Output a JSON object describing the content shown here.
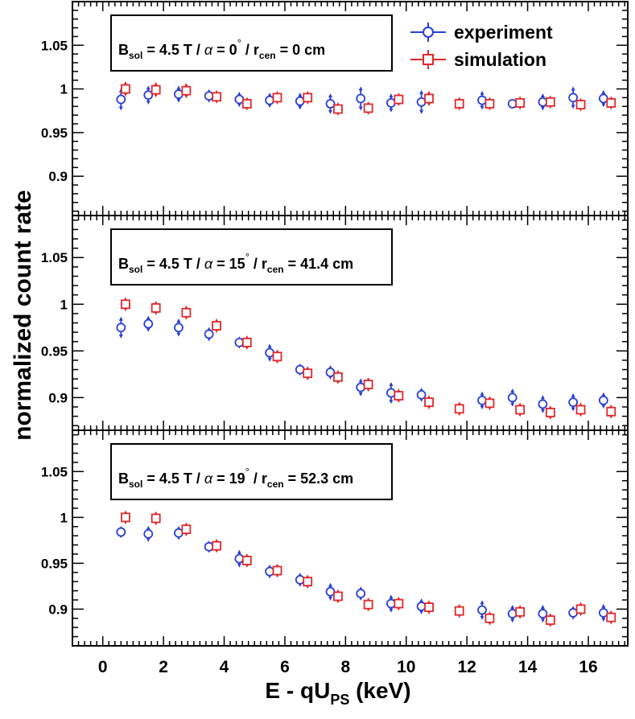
{
  "chart_data": {
    "type": "scatter",
    "ylabel": "normalized count rate",
    "xlabel": {
      "main": "E - qU",
      "sub": "PS",
      "unit": " (keV)"
    },
    "xlim": [
      -1,
      17.3
    ],
    "x_ticks": [
      0,
      2,
      4,
      6,
      8,
      10,
      12,
      14,
      16
    ],
    "x_tick_labels": [
      "0",
      "2",
      "4",
      "6",
      "8",
      "10",
      "12",
      "14",
      "16"
    ],
    "legend": {
      "position": "top-right",
      "entries": [
        {
          "name": "experiment",
          "color": "#2a3fd6",
          "marker": "circle"
        },
        {
          "name": "simulation",
          "color": "#e0282c",
          "marker": "square"
        }
      ]
    },
    "panels": [
      {
        "ylim": [
          0.855,
          1.1
        ],
        "y_ticks": [
          0.9,
          0.95,
          1,
          1.05
        ],
        "y_tick_labels": [
          "0.9",
          "0.95",
          "1",
          "1.05"
        ],
        "label": {
          "b": "B",
          "bsub": "sol",
          "mid": " = 4.5 T / ",
          "alpha": "α",
          "eq": " = 0",
          "deg": "°",
          "sep": " / r",
          "rsub": "cen",
          "tail": " = 0 cm"
        },
        "series": [
          {
            "name": "experiment",
            "x": [
              0.6,
              1.5,
              2.5,
              3.5,
              4.5,
              5.5,
              6.5,
              7.5,
              8.5,
              9.5,
              10.5,
              12.5,
              13.5,
              14.5,
              15.5,
              16.5
            ],
            "y": [
              0.988,
              0.993,
              0.994,
              0.992,
              0.988,
              0.987,
              0.986,
              0.983,
              0.989,
              0.984,
              0.985,
              0.987,
              0.983,
              0.985,
              0.99,
              0.989
            ],
            "err": [
              0.011,
              0.009,
              0.008,
              0.006,
              0.007,
              0.007,
              0.008,
              0.01,
              0.012,
              0.009,
              0.012,
              0.009,
              0.003,
              0.008,
              0.011,
              0.008
            ]
          },
          {
            "name": "simulation",
            "x": [
              0.75,
              1.75,
              2.75,
              3.75,
              4.75,
              5.75,
              6.75,
              7.75,
              8.75,
              9.75,
              10.75,
              11.75,
              12.75,
              13.75,
              14.75,
              15.75,
              16.75
            ],
            "y": [
              1.0,
              0.999,
              0.998,
              0.991,
              0.983,
              0.99,
              0.99,
              0.977,
              0.978,
              0.988,
              0.989,
              0.983,
              0.983,
              0.984,
              0.985,
              0.982,
              0.984
            ],
            "err": [
              0.007,
              0.007,
              0.007,
              0.006,
              0.006,
              0.006,
              0.006,
              0.006,
              0.006,
              0.006,
              0.007,
              0.006,
              0.006,
              0.006,
              0.006,
              0.006,
              0.006
            ]
          }
        ]
      },
      {
        "ylim": [
          0.865,
          1.095
        ],
        "y_ticks": [
          0.9,
          0.95,
          1,
          1.05
        ],
        "y_tick_labels": [
          "0.9",
          "0.95",
          "1",
          "1.05"
        ],
        "label": {
          "b": "B",
          "bsub": "sol",
          "mid": " = 4.5 T / ",
          "alpha": "α",
          "eq": " = 15",
          "deg": "°",
          "sep": " / r",
          "rsub": "cen",
          "tail": " = 41.4 cm"
        },
        "series": [
          {
            "name": "experiment",
            "x": [
              0.6,
              1.5,
              2.5,
              3.5,
              4.5,
              5.5,
              6.5,
              7.5,
              8.5,
              9.5,
              10.5,
              12.5,
              13.5,
              14.5,
              15.5,
              16.5
            ],
            "y": [
              0.975,
              0.979,
              0.975,
              0.968,
              0.959,
              0.948,
              0.93,
              0.927,
              0.911,
              0.905,
              0.903,
              0.897,
              0.9,
              0.893,
              0.895,
              0.897
            ],
            "err": [
              0.01,
              0.007,
              0.008,
              0.006,
              0.005,
              0.008,
              0.005,
              0.006,
              0.008,
              0.01,
              0.006,
              0.008,
              0.008,
              0.008,
              0.008,
              0.007
            ]
          },
          {
            "name": "simulation",
            "x": [
              0.75,
              1.75,
              2.75,
              3.75,
              4.75,
              5.75,
              6.75,
              7.75,
              8.75,
              9.75,
              10.75,
              11.75,
              12.75,
              13.75,
              14.75,
              15.75,
              16.75
            ],
            "y": [
              1.0,
              0.996,
              0.991,
              0.977,
              0.959,
              0.944,
              0.926,
              0.922,
              0.914,
              0.902,
              0.895,
              0.888,
              0.894,
              0.887,
              0.884,
              0.887,
              0.885
            ],
            "err": [
              0.006,
              0.006,
              0.006,
              0.006,
              0.006,
              0.006,
              0.006,
              0.006,
              0.006,
              0.006,
              0.006,
              0.006,
              0.006,
              0.006,
              0.006,
              0.006,
              0.006
            ]
          }
        ]
      },
      {
        "ylim": [
          0.86,
          1.095
        ],
        "y_ticks": [
          0.9,
          0.95,
          1,
          1.05
        ],
        "y_tick_labels": [
          "0.9",
          "0.95",
          "1",
          "1.05"
        ],
        "label": {
          "b": "B",
          "bsub": "sol",
          "mid": " = 4.5 T / ",
          "alpha": "α",
          "eq": " = 19",
          "deg": "°",
          "sep": " / r",
          "rsub": "cen",
          "tail": " = 52.3 cm"
        },
        "series": [
          {
            "name": "experiment",
            "x": [
              0.6,
              1.5,
              2.5,
              3.5,
              4.5,
              5.5,
              6.5,
              7.5,
              8.5,
              9.5,
              10.5,
              12.5,
              13.5,
              14.5,
              15.5,
              16.5
            ],
            "y": [
              0.984,
              0.982,
              0.983,
              0.968,
              0.955,
              0.941,
              0.932,
              0.919,
              0.917,
              0.906,
              0.903,
              0.899,
              0.895,
              0.895,
              0.896,
              0.896
            ],
            "err": [
              0.005,
              0.007,
              0.006,
              0.005,
              0.008,
              0.006,
              0.006,
              0.008,
              0.006,
              0.008,
              0.007,
              0.009,
              0.008,
              0.008,
              0.006,
              0.008
            ]
          },
          {
            "name": "simulation",
            "x": [
              0.75,
              1.75,
              2.75,
              3.75,
              4.75,
              5.75,
              6.75,
              7.75,
              8.75,
              9.75,
              10.75,
              11.75,
              12.75,
              13.75,
              14.75,
              15.75,
              16.75
            ],
            "y": [
              1.0,
              0.999,
              0.987,
              0.969,
              0.953,
              0.942,
              0.93,
              0.914,
              0.905,
              0.906,
              0.902,
              0.898,
              0.89,
              0.897,
              0.888,
              0.9,
              0.891
            ],
            "err": [
              0.006,
              0.006,
              0.006,
              0.006,
              0.006,
              0.006,
              0.006,
              0.006,
              0.006,
              0.006,
              0.006,
              0.006,
              0.006,
              0.006,
              0.006,
              0.006,
              0.006
            ]
          }
        ]
      }
    ]
  }
}
